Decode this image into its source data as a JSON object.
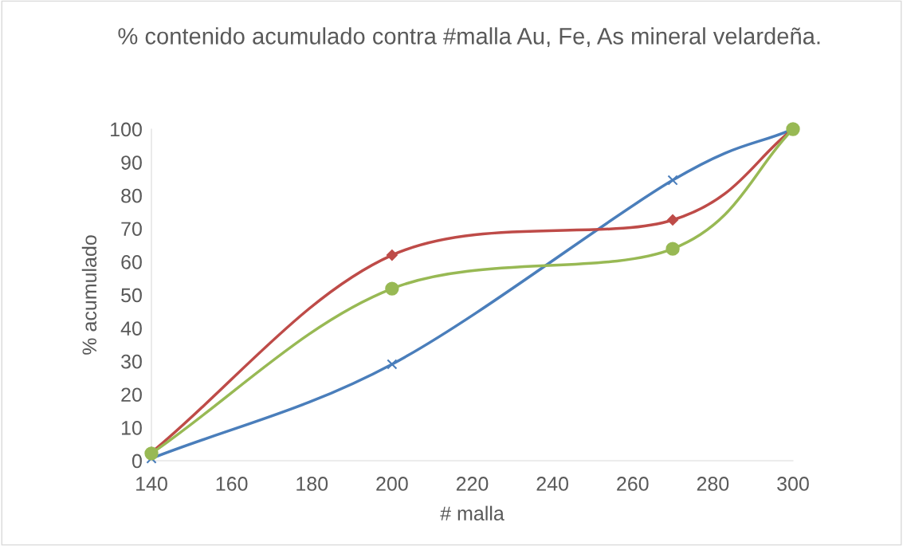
{
  "chart_data": {
    "type": "line",
    "title": "% contenido acumulado contra #malla Au, Fe, As mineral velardeña.",
    "xlabel": "# malla",
    "ylabel": "% acumulado",
    "x": [
      140,
      200,
      270,
      300
    ],
    "series": [
      {
        "color": "#4a7ebb",
        "marker": "cross",
        "values": [
          0.7,
          29.1,
          84.6,
          100
        ]
      },
      {
        "color": "#be4b48",
        "marker": "diamond",
        "values": [
          2.5,
          62.0,
          72.6,
          100
        ]
      },
      {
        "color": "#98b954",
        "marker": "circle",
        "values": [
          2.2,
          51.9,
          63.9,
          100
        ]
      }
    ],
    "xlim": [
      140,
      300
    ],
    "xticks": [
      140,
      160,
      180,
      200,
      220,
      240,
      260,
      280,
      300
    ],
    "ylim": [
      0,
      100
    ],
    "yticks": [
      0,
      10,
      20,
      30,
      40,
      50,
      60,
      70,
      80,
      90,
      100
    ],
    "grid": false,
    "legend": false,
    "line_style": "solid"
  }
}
